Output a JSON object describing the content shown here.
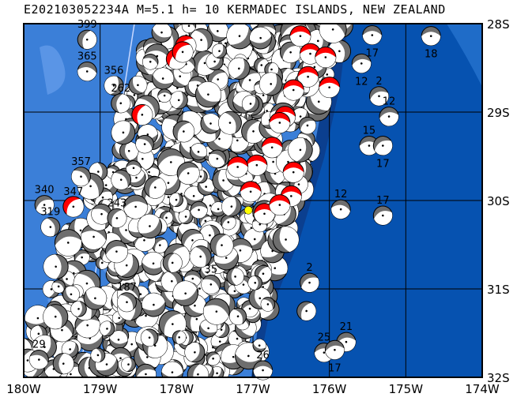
{
  "title": "E202103052234A M=5.1 h= 10 KERMADEC ISLANDS, NEW ZEALAND",
  "map": {
    "lon_range": [
      -180,
      -174
    ],
    "lat_range": [
      -32,
      -28
    ],
    "lon_ticks": [
      {
        "v": -180,
        "label": "180W"
      },
      {
        "v": -179,
        "label": "179W"
      },
      {
        "v": -178,
        "label": "178W"
      },
      {
        "v": -177,
        "label": "177W"
      },
      {
        "v": -176,
        "label": "176W"
      },
      {
        "v": -175,
        "label": "175W"
      },
      {
        "v": -174,
        "label": "174W"
      }
    ],
    "lat_ticks": [
      {
        "v": -28,
        "label": "28S"
      },
      {
        "v": -29,
        "label": "29S"
      },
      {
        "v": -30,
        "label": "30S"
      },
      {
        "v": -31,
        "label": "31S"
      },
      {
        "v": -32,
        "label": "32S"
      }
    ],
    "grid": true,
    "colors": {
      "shallow_sea": "#3b7fd8",
      "deep_sea": "#0652b0",
      "land_patch": "#5a95e6",
      "mechanism_fill": "#6e6e6e",
      "highlight_fill": "#ff0000",
      "epicenter": "#ffff00"
    },
    "epicenter": {
      "lon": -177.06,
      "lat": -30.11
    },
    "events": [
      {
        "lon": -179.17,
        "lat": -28.18,
        "depth": "399",
        "color": "gray",
        "rot": 20
      },
      {
        "lon": -179.17,
        "lat": -28.54,
        "depth": "365",
        "color": "gray",
        "rot": 100
      },
      {
        "lon": -178.82,
        "lat": -28.7,
        "depth": "356",
        "color": "gray",
        "rot": 200
      },
      {
        "lon": -178.73,
        "lat": -28.9,
        "depth": "262",
        "color": "gray",
        "rot": 10
      },
      {
        "lon": -179.73,
        "lat": -30.05,
        "depth": "340",
        "color": "gray",
        "rot": 60
      },
      {
        "lon": -179.25,
        "lat": -29.73,
        "depth": "357",
        "color": "gray",
        "rot": 130
      },
      {
        "lon": -179.35,
        "lat": -30.07,
        "depth": "347",
        "color": "red",
        "rot": 40
      },
      {
        "lon": -178.45,
        "lat": -29.03,
        "depth": "",
        "color": "red",
        "rot": 20
      },
      {
        "lon": -175.44,
        "lat": -28.13,
        "depth": "17",
        "color": "gray",
        "rot": 90
      },
      {
        "lon": -174.67,
        "lat": -28.14,
        "depth": "18",
        "color": "gray",
        "rot": 90
      },
      {
        "lon": -175.58,
        "lat": -28.45,
        "depth": "12",
        "color": "gray",
        "rot": 80
      },
      {
        "lon": -175.35,
        "lat": -28.82,
        "depth": "2",
        "color": "gray",
        "rot": 70
      },
      {
        "lon": -175.22,
        "lat": -29.05,
        "depth": "12",
        "color": "gray",
        "rot": 80
      },
      {
        "lon": -175.48,
        "lat": -29.38,
        "depth": "15",
        "color": "gray",
        "rot": 90
      },
      {
        "lon": -175.3,
        "lat": -29.38,
        "depth": "17",
        "color": "gray",
        "rot": 60
      },
      {
        "lon": -175.3,
        "lat": -30.17,
        "depth": "17",
        "color": "gray",
        "rot": 70
      },
      {
        "lon": -175.85,
        "lat": -30.1,
        "depth": "12",
        "color": "gray",
        "rot": 100
      },
      {
        "lon": -176.26,
        "lat": -30.93,
        "depth": "2",
        "color": "gray",
        "rot": 60
      },
      {
        "lon": -176.87,
        "lat": -31.92,
        "depth": "26",
        "color": "gray",
        "rot": 90
      },
      {
        "lon": -175.78,
        "lat": -31.6,
        "depth": "21",
        "color": "gray",
        "rot": 80
      },
      {
        "lon": -176.07,
        "lat": -31.72,
        "depth": "25",
        "color": "gray",
        "rot": 90
      },
      {
        "lon": -175.93,
        "lat": -31.69,
        "depth": "17",
        "color": "gray",
        "rot": 80
      },
      {
        "lon": -176.3,
        "lat": -31.25,
        "depth": "",
        "color": "gray",
        "rot": 30
      },
      {
        "lon": -176.38,
        "lat": -28.14,
        "depth": "",
        "color": "red",
        "rot": 90
      },
      {
        "lon": -176.25,
        "lat": -28.34,
        "depth": "",
        "color": "red",
        "rot": 90
      },
      {
        "lon": -176.05,
        "lat": -28.38,
        "depth": "",
        "color": "red",
        "rot": 90
      },
      {
        "lon": -176.28,
        "lat": -28.6,
        "depth": "",
        "color": "red",
        "rot": 90
      },
      {
        "lon": -176.47,
        "lat": -28.75,
        "depth": "",
        "color": "red",
        "rot": 90
      },
      {
        "lon": -176.58,
        "lat": -29.05,
        "depth": "",
        "color": "red",
        "rot": 90
      },
      {
        "lon": -176.65,
        "lat": -29.12,
        "depth": "",
        "color": "red",
        "rot": 90
      },
      {
        "lon": -176.75,
        "lat": -29.4,
        "depth": "",
        "color": "red",
        "rot": 90
      },
      {
        "lon": -176.95,
        "lat": -29.6,
        "depth": "",
        "color": "red",
        "rot": 90
      },
      {
        "lon": -177.2,
        "lat": -29.62,
        "depth": "",
        "color": "red",
        "rot": 90
      },
      {
        "lon": -177.03,
        "lat": -29.9,
        "depth": "",
        "color": "red",
        "rot": 90
      },
      {
        "lon": -176.47,
        "lat": -29.68,
        "depth": "",
        "color": "red",
        "rot": 90
      },
      {
        "lon": -176.5,
        "lat": -29.95,
        "depth": "",
        "color": "red",
        "rot": 90
      },
      {
        "lon": -176.85,
        "lat": -30.15,
        "depth": "",
        "color": "red",
        "rot": 90
      },
      {
        "lon": -176.65,
        "lat": -30.05,
        "depth": "",
        "color": "red",
        "rot": 90
      },
      {
        "lon": -176.0,
        "lat": -28.72,
        "depth": "",
        "color": "red",
        "rot": 90
      },
      {
        "lon": -177.88,
        "lat": -28.25,
        "depth": "",
        "color": "red",
        "rot": 45
      },
      {
        "lon": -178.0,
        "lat": -28.4,
        "depth": "",
        "color": "red",
        "rot": 45
      },
      {
        "lon": -177.92,
        "lat": -28.32,
        "depth": "",
        "color": "red",
        "rot": 45
      },
      {
        "lon": -177.55,
        "lat": -30.95,
        "depth": "35",
        "color": "gray",
        "rot": 120
      },
      {
        "lon": -178.65,
        "lat": -31.15,
        "depth": "187",
        "color": "gray",
        "rot": 140
      },
      {
        "lon": -179.65,
        "lat": -30.3,
        "depth": "319",
        "color": "gray",
        "rot": 160
      },
      {
        "lon": -178.78,
        "lat": -30.2,
        "depth": "243",
        "color": "gray",
        "rot": 30
      },
      {
        "lon": -179.8,
        "lat": -31.8,
        "depth": "29",
        "color": "gray",
        "rot": 110
      }
    ]
  }
}
